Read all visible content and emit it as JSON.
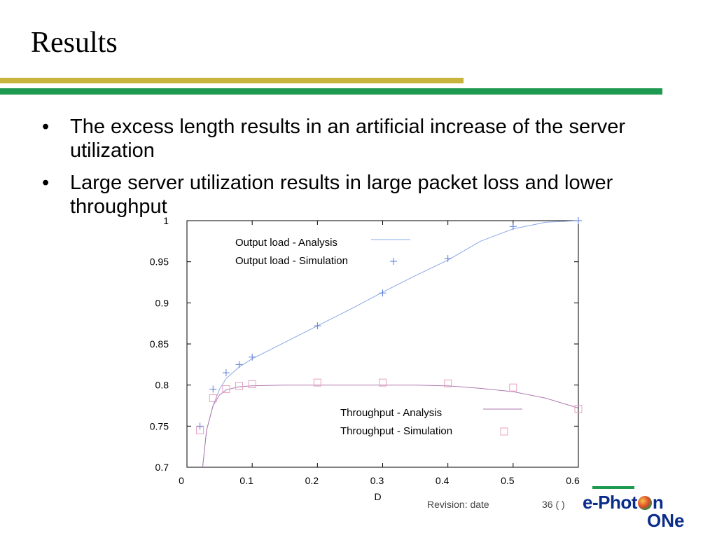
{
  "slide": {
    "title": "Results",
    "bullets": [
      "The excess length results in an artificial increase of the server utilization",
      "Large server utilization results in large packet loss and lower throughput"
    ],
    "footer_revision": "Revision: date",
    "footer_page": "36 (  )",
    "logo_top_left": "e-Phot",
    "logo_top_right": "n",
    "logo_bottom": "ONe"
  },
  "chart_data": {
    "type": "line",
    "xlabel": "D",
    "ylabel": "",
    "xlim": [
      0,
      0.6
    ],
    "ylim": [
      0.7,
      1.0
    ],
    "xticks": [
      0,
      0.1,
      0.2,
      0.3,
      0.4,
      0.5,
      0.6
    ],
    "xtick_labels": [
      "0",
      "0.1",
      "0.2",
      "0.3",
      "0.4",
      "0.5",
      "0.6"
    ],
    "yticks": [
      0.7,
      0.75,
      0.8,
      0.85,
      0.9,
      0.95,
      1.0
    ],
    "ytick_labels": [
      "0.7",
      "0.75",
      "0.8",
      "0.85",
      "0.9",
      "0.95",
      "1"
    ],
    "series": [
      {
        "name": "Output load - Analysis",
        "style": "line",
        "color": "#8aa8e8",
        "x": [
          0.024,
          0.03,
          0.04,
          0.05,
          0.06,
          0.08,
          0.1,
          0.15,
          0.2,
          0.25,
          0.3,
          0.35,
          0.4,
          0.45,
          0.5,
          0.55,
          0.6
        ],
        "y": [
          0.7,
          0.745,
          0.775,
          0.795,
          0.808,
          0.822,
          0.832,
          0.852,
          0.872,
          0.892,
          0.913,
          0.933,
          0.952,
          0.975,
          0.99,
          0.998,
          1.0
        ]
      },
      {
        "name": "Output load - Simulation",
        "style": "plus",
        "color": "#5a7ad8",
        "x": [
          0.02,
          0.04,
          0.06,
          0.08,
          0.1,
          0.2,
          0.3,
          0.4,
          0.5,
          0.6
        ],
        "y": [
          0.75,
          0.795,
          0.815,
          0.825,
          0.834,
          0.872,
          0.912,
          0.954,
          0.993,
          1.0
        ]
      },
      {
        "name": "Throughput - Analysis",
        "style": "line",
        "color": "#b07ab0",
        "x": [
          0.024,
          0.03,
          0.04,
          0.05,
          0.06,
          0.08,
          0.1,
          0.15,
          0.2,
          0.25,
          0.3,
          0.35,
          0.4,
          0.45,
          0.5,
          0.55,
          0.6
        ],
        "y": [
          0.7,
          0.745,
          0.775,
          0.788,
          0.794,
          0.798,
          0.799,
          0.8,
          0.8,
          0.8,
          0.8,
          0.8,
          0.799,
          0.796,
          0.792,
          0.784,
          0.772
        ]
      },
      {
        "name": "Throughput - Simulation",
        "style": "square",
        "color": "#e8a0c0",
        "x": [
          0.02,
          0.04,
          0.06,
          0.08,
          0.1,
          0.2,
          0.3,
          0.4,
          0.5,
          0.6
        ],
        "y": [
          0.745,
          0.784,
          0.795,
          0.799,
          0.801,
          0.803,
          0.803,
          0.802,
          0.797,
          0.771
        ]
      }
    ]
  }
}
